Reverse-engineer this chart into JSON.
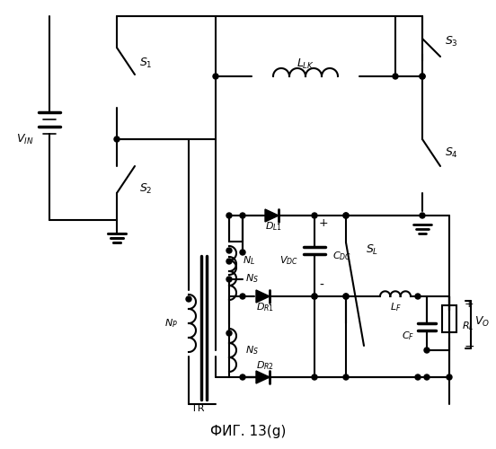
{
  "title": "ФИГ. 13(g)",
  "bg_color": "#ffffff",
  "line_color": "#000000",
  "linewidth": 1.5,
  "fig_width": 5.52,
  "fig_height": 5.0
}
